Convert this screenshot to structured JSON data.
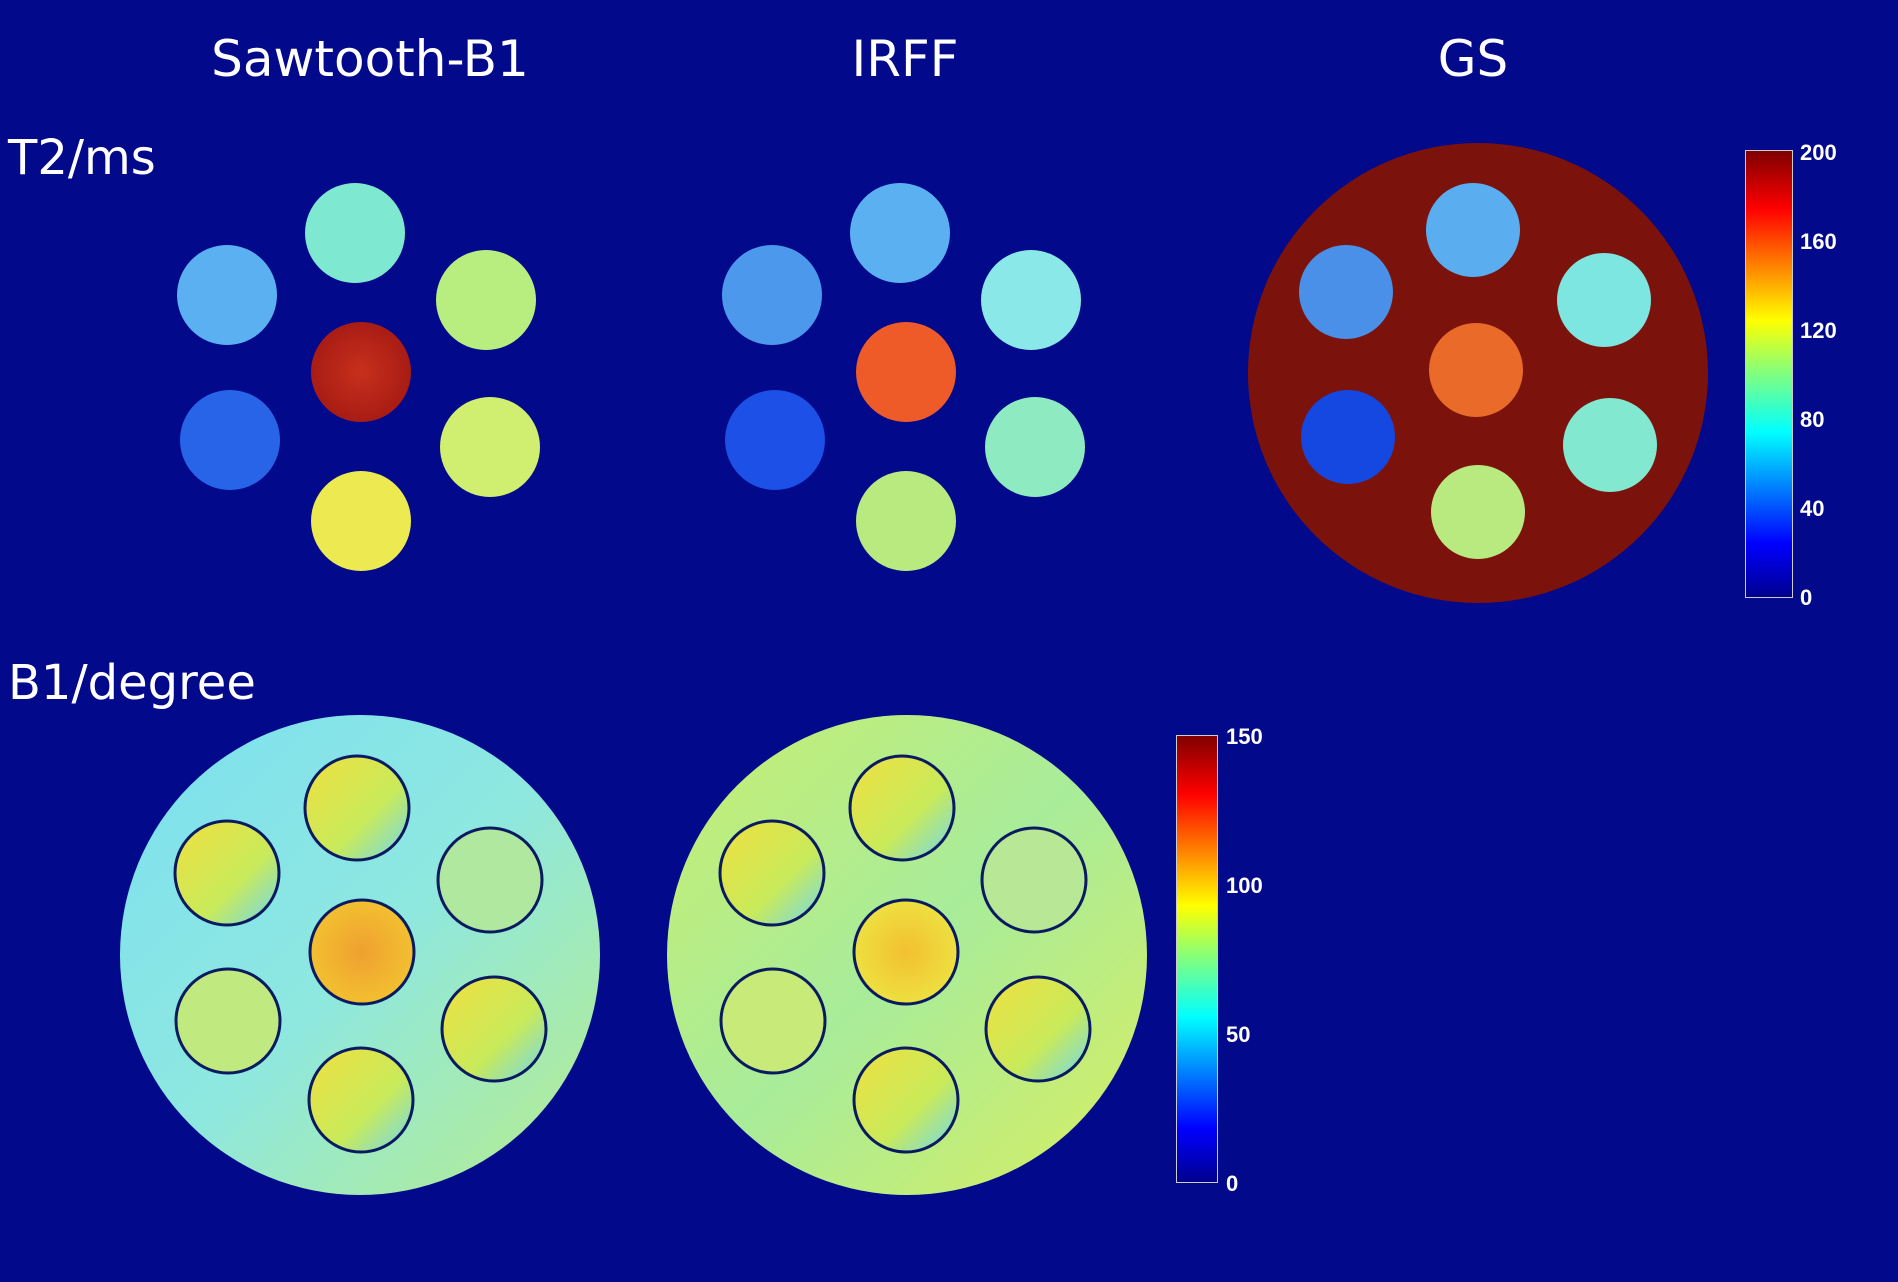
{
  "columns": [
    "Sawtooth-B1",
    "IRFF",
    "GS"
  ],
  "rows": [
    "T2/ms",
    "B1/degree"
  ],
  "t2_colorbar": {
    "ticks": [
      "200",
      "160",
      "120",
      "80",
      "40",
      "0"
    ]
  },
  "b1_colorbar": {
    "ticks": [
      "150",
      "100",
      "50",
      "0"
    ]
  }
}
